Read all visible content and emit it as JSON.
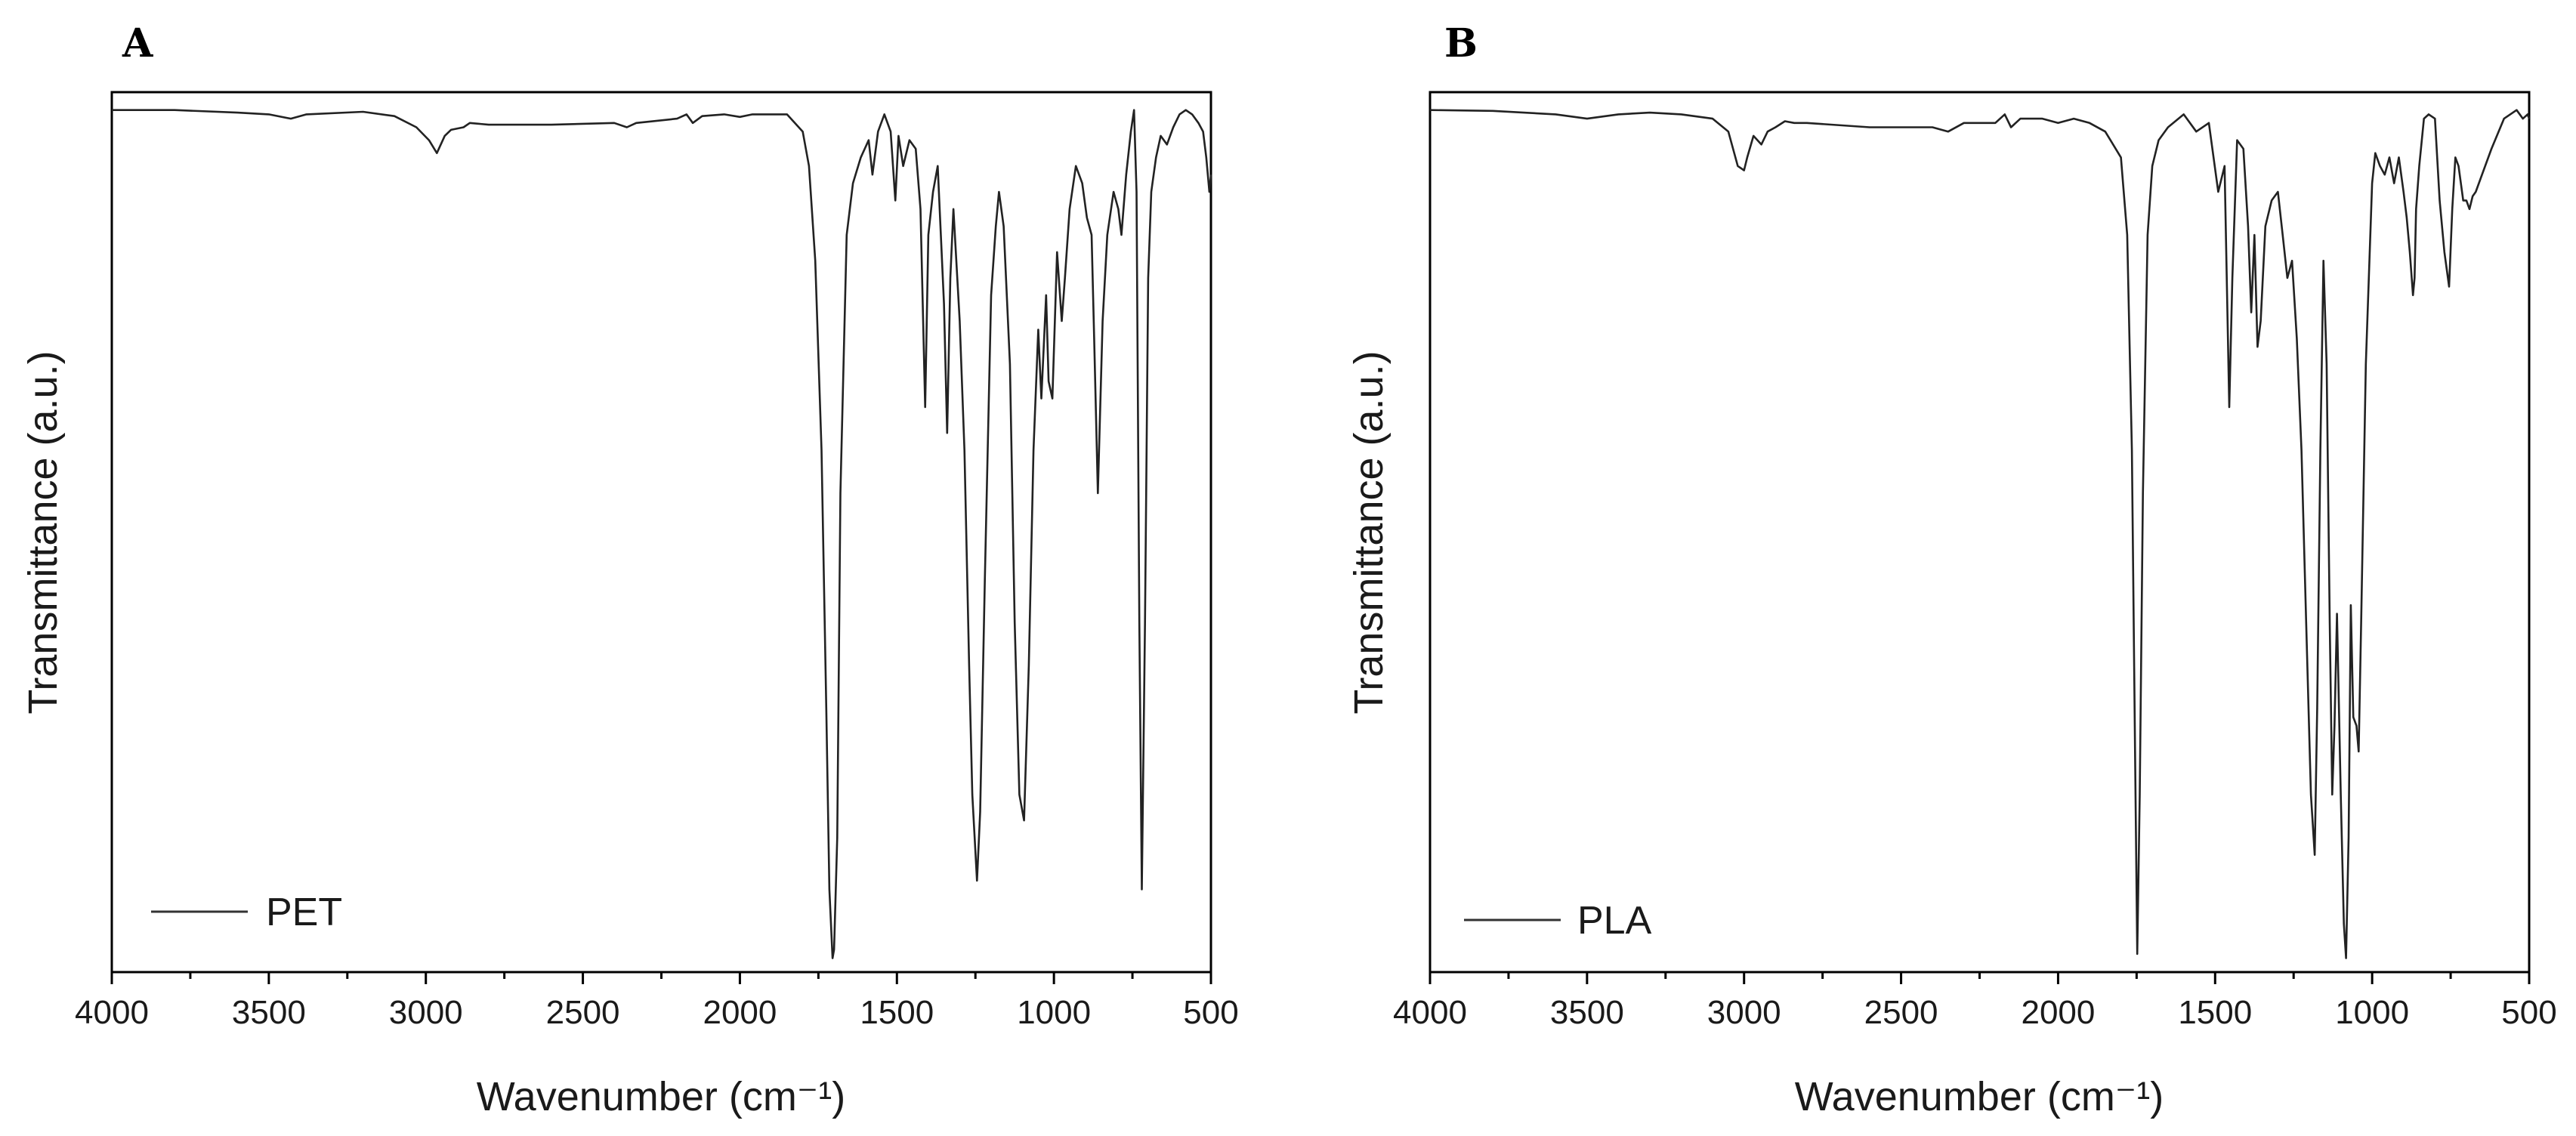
{
  "chart_data": [
    {
      "type": "line",
      "panel_label": "A",
      "xlabel": "Wavenumber (cm⁻¹)",
      "ylabel": "Transmittance (a.u.)",
      "xlim": [
        4000,
        500
      ],
      "ylim": [
        0,
        100
      ],
      "x_reversed": true,
      "y_ticks_labeled": false,
      "x_ticks": [
        4000,
        3500,
        3000,
        2500,
        2000,
        1500,
        1000,
        500
      ],
      "x_tick_labels": [
        "4000",
        "3500",
        "3000",
        "2500",
        "2000",
        "1500",
        "1000",
        "500"
      ],
      "legend_position": "bottom-left",
      "grid": false,
      "series": [
        {
          "name": "PET",
          "color": "#222222",
          "x": [
            4000,
            3800,
            3600,
            3500,
            3430,
            3380,
            3200,
            3100,
            3030,
            2990,
            2965,
            2940,
            2920,
            2880,
            2860,
            2800,
            2600,
            2400,
            2360,
            2330,
            2200,
            2170,
            2150,
            2120,
            2050,
            2000,
            1960,
            1900,
            1850,
            1800,
            1780,
            1760,
            1740,
            1725,
            1715,
            1705,
            1700,
            1690,
            1680,
            1660,
            1640,
            1615,
            1590,
            1578,
            1560,
            1540,
            1520,
            1505,
            1495,
            1480,
            1460,
            1440,
            1425,
            1410,
            1400,
            1385,
            1370,
            1350,
            1340,
            1330,
            1320,
            1300,
            1285,
            1270,
            1260,
            1245,
            1235,
            1220,
            1200,
            1185,
            1175,
            1160,
            1140,
            1125,
            1110,
            1095,
            1080,
            1065,
            1050,
            1040,
            1025,
            1017,
            1005,
            990,
            975,
            965,
            950,
            930,
            910,
            895,
            880,
            872,
            860,
            845,
            830,
            810,
            795,
            785,
            770,
            755,
            745,
            737,
            728,
            720,
            710,
            700,
            690,
            675,
            660,
            640,
            620,
            600,
            580,
            560,
            540,
            525,
            515,
            505,
            500
          ],
          "y": [
            99.5,
            99.5,
            99.2,
            99.0,
            98.5,
            99.0,
            99.3,
            98.8,
            97.5,
            96.0,
            94.5,
            96.5,
            97.2,
            97.5,
            98.0,
            97.8,
            97.8,
            98.0,
            97.5,
            98.0,
            98.5,
            99.0,
            98.0,
            98.8,
            99.0,
            98.7,
            99.0,
            99.0,
            99.0,
            97.0,
            93.0,
            82.0,
            60.0,
            30.0,
            9.0,
            1.0,
            2.0,
            15.0,
            55.0,
            85.0,
            91.0,
            94.0,
            96.0,
            92.0,
            97.0,
            99.0,
            97.0,
            89.0,
            96.5,
            93.0,
            96.0,
            95.0,
            88.0,
            65.0,
            85.0,
            90.0,
            93.0,
            77.0,
            62.0,
            80.0,
            88.0,
            75.0,
            60.0,
            35.0,
            20.0,
            10.0,
            18.0,
            45.0,
            78.0,
            86.0,
            90.0,
            86.0,
            70.0,
            40.0,
            20.0,
            17.0,
            35.0,
            60.0,
            74.0,
            66.0,
            78.0,
            68.0,
            66.0,
            83.0,
            75.0,
            80.0,
            88.0,
            93.0,
            91.0,
            87.0,
            85.0,
            73.0,
            55.0,
            75.0,
            85.0,
            90.0,
            88.0,
            85.0,
            92.0,
            97.0,
            99.5,
            90.0,
            40.0,
            9.0,
            40.0,
            80.0,
            90.0,
            94.0,
            96.5,
            95.5,
            97.5,
            99.0,
            99.5,
            99.0,
            98.0,
            97.0,
            94.0,
            90.0,
            92.0
          ]
        }
      ]
    },
    {
      "type": "line",
      "panel_label": "B",
      "xlabel": "Wavenumber (cm⁻¹)",
      "ylabel": "Transmittance (a.u.)",
      "xlim": [
        4000,
        500
      ],
      "ylim": [
        0,
        100
      ],
      "x_reversed": true,
      "y_ticks_labeled": false,
      "x_ticks": [
        4000,
        3500,
        3000,
        2500,
        2000,
        1500,
        1000,
        500
      ],
      "x_tick_labels": [
        "4000",
        "3500",
        "3000",
        "2500",
        "2000",
        "1500",
        "1000",
        "500"
      ],
      "legend_position": "bottom-left",
      "grid": false,
      "series": [
        {
          "name": "PLA",
          "color": "#222222",
          "x": [
            4000,
            3800,
            3600,
            3500,
            3400,
            3300,
            3200,
            3100,
            3050,
            3020,
            3000,
            2990,
            2970,
            2945,
            2925,
            2900,
            2870,
            2840,
            2800,
            2600,
            2400,
            2350,
            2300,
            2200,
            2170,
            2150,
            2120,
            2050,
            2000,
            1950,
            1900,
            1850,
            1800,
            1780,
            1765,
            1755,
            1748,
            1740,
            1730,
            1715,
            1700,
            1680,
            1650,
            1600,
            1560,
            1520,
            1490,
            1470,
            1455,
            1445,
            1430,
            1410,
            1395,
            1385,
            1375,
            1365,
            1355,
            1340,
            1320,
            1300,
            1285,
            1270,
            1255,
            1240,
            1225,
            1210,
            1195,
            1183,
            1175,
            1165,
            1155,
            1145,
            1135,
            1127,
            1120,
            1112,
            1100,
            1090,
            1083,
            1075,
            1068,
            1060,
            1050,
            1043,
            1035,
            1020,
            1000,
            990,
            975,
            960,
            945,
            930,
            915,
            900,
            890,
            880,
            870,
            865,
            860,
            850,
            835,
            820,
            800,
            785,
            770,
            755,
            745,
            735,
            725,
            710,
            700,
            690,
            680,
            670,
            650,
            620,
            580,
            540,
            520,
            505,
            500
          ],
          "y": [
            99.5,
            99.4,
            99.0,
            98.5,
            99.0,
            99.2,
            99.0,
            98.5,
            97.0,
            93.0,
            92.5,
            94.0,
            96.5,
            95.5,
            97.0,
            97.5,
            98.2,
            98.0,
            98.0,
            97.5,
            97.5,
            97.0,
            98.0,
            98.0,
            99.0,
            97.5,
            98.5,
            98.5,
            98.0,
            98.5,
            98.0,
            97.0,
            94.0,
            85.0,
            60.0,
            25.0,
            1.5,
            20.0,
            55.0,
            85.0,
            93.0,
            96.0,
            97.5,
            99.0,
            97.0,
            98.0,
            90.0,
            93.0,
            65.0,
            80.0,
            96.0,
            95.0,
            86.0,
            76.0,
            85.0,
            72.0,
            75.0,
            86.0,
            89.0,
            90.0,
            85.0,
            80.0,
            82.0,
            73.0,
            60.0,
            40.0,
            20.0,
            13.0,
            30.0,
            60.0,
            82.0,
            70.0,
            40.0,
            20.0,
            28.0,
            41.0,
            20.0,
            5.0,
            1.0,
            15.0,
            42.0,
            29.0,
            28.0,
            25.0,
            40.0,
            70.0,
            91.0,
            94.5,
            93.0,
            92.0,
            94.0,
            91.0,
            94.0,
            90.0,
            87.0,
            83.0,
            78.0,
            80.0,
            88.0,
            93.0,
            98.5,
            99.0,
            98.5,
            89.0,
            83.0,
            79.0,
            88.0,
            94.0,
            93.0,
            89.0,
            89.0,
            88.0,
            89.5,
            90.0,
            92.0,
            95.0,
            98.5,
            99.5,
            98.5,
            99.0,
            98.5
          ]
        }
      ]
    }
  ]
}
